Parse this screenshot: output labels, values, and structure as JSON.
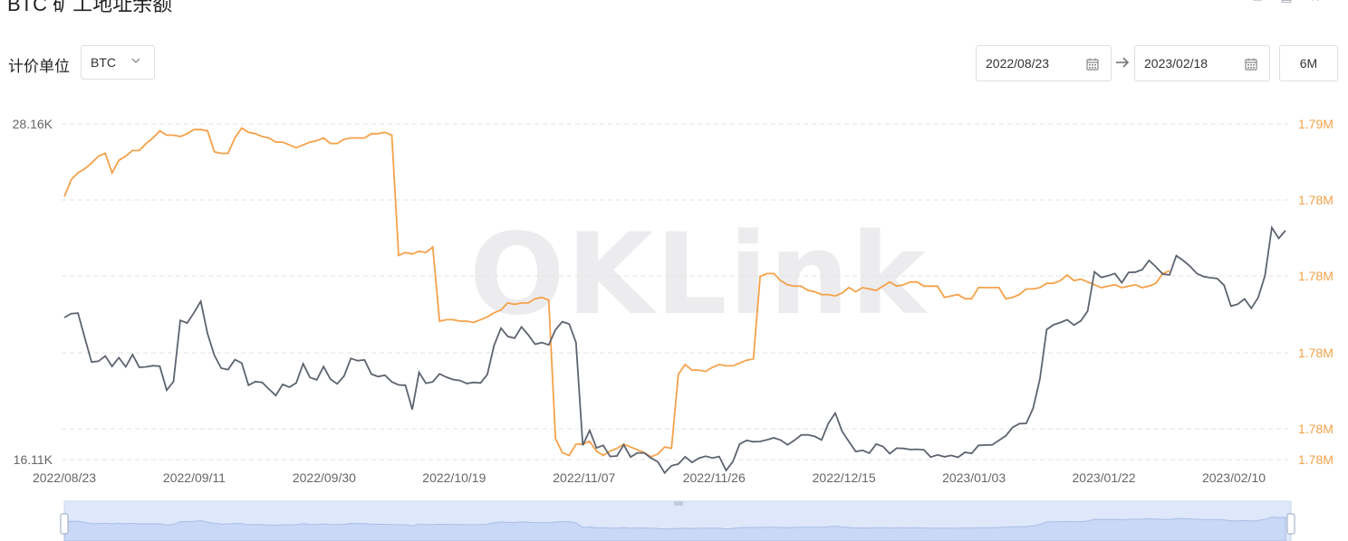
{
  "header": {
    "title": "BTC 矿工地址余额",
    "icons": [
      "download-icon",
      "fullscreen-icon",
      "star-icon"
    ]
  },
  "controls": {
    "unit_label": "计价单位",
    "unit_value": "BTC",
    "start_date": "2022/08/23",
    "end_date": "2023/02/18",
    "period_label": "6M"
  },
  "colors": {
    "price": "#5d6470",
    "balance": "#f5a14a",
    "grid": "#e3e3e3",
    "axis_left": "#666666",
    "navigator": "#dfe8fb"
  },
  "chart_data": {
    "type": "line",
    "title": "",
    "x_tick_labels": [
      "2022/08/23",
      "2022/09/11",
      "2022/09/30",
      "2022/10/19",
      "2022/11/07",
      "2022/11/26",
      "2022/12/15",
      "2023/01/03",
      "2023/01/22",
      "2023/02/10"
    ],
    "x_start": "2022/08/23",
    "x_end": "2023/02/18",
    "y_left": {
      "min": 16110,
      "max": 28160,
      "tick_labels": [
        "28.16K",
        "16.11K"
      ]
    },
    "y_right": {
      "min": 1.78,
      "max": 1.79,
      "tick_labels": [
        "1.79M",
        "1.78M",
        "1.78M",
        "1.78M",
        "1.78M",
        "1.78M"
      ]
    },
    "grid": true,
    "series": [
      {
        "axis": "left",
        "values": [
          21210,
          21350,
          21370,
          20480,
          19610,
          19640,
          19830,
          19460,
          19770,
          19440,
          19880,
          19420,
          19440,
          19480,
          19460,
          18600,
          18910,
          21110,
          21010,
          21380,
          21790,
          20630,
          19850,
          19390,
          19340,
          19700,
          19580,
          18780,
          18910,
          18880,
          18640,
          18410,
          18810,
          18710,
          18860,
          19550,
          19060,
          18970,
          19450,
          19000,
          18830,
          19110,
          19740,
          19660,
          19690,
          19180,
          19090,
          19140,
          18900,
          18790,
          18780,
          17910,
          19240,
          18850,
          18900,
          19190,
          19070,
          18980,
          18950,
          18840,
          18880,
          18860,
          19160,
          20210,
          20830,
          20530,
          20470,
          20870,
          20590,
          20250,
          20310,
          20230,
          20770,
          21060,
          20980,
          20320,
          16620,
          17160,
          16530,
          16620,
          16220,
          16240,
          16640,
          16200,
          16350,
          16350,
          16170,
          16030,
          15630,
          15890,
          15950,
          16210,
          16010,
          16160,
          16230,
          16170,
          16220,
          15720,
          16040,
          16670,
          16800,
          16750,
          16760,
          16820,
          16890,
          16810,
          16640,
          16800,
          16990,
          17000,
          16940,
          16810,
          17410,
          17780,
          17130,
          16760,
          16400,
          16440,
          16340,
          16670,
          16580,
          16320,
          16520,
          16510,
          16470,
          16480,
          16460,
          16200,
          16280,
          16210,
          16260,
          16190,
          16370,
          16330,
          16620,
          16630,
          16640,
          16800,
          16960,
          17270,
          17400,
          17410,
          17950,
          19000,
          20780,
          20950,
          21030,
          21130,
          20940,
          21090,
          21440,
          22850,
          22650,
          22710,
          22790,
          22460,
          22830,
          22840,
          22930,
          23260,
          23030,
          22770,
          22740,
          23430,
          23260,
          23050,
          22790,
          22680,
          22640,
          22610,
          22370,
          21620,
          21690,
          21880,
          21540,
          21930,
          22720,
          24440,
          24050,
          24330
        ]
      },
      {
        "axis": "right",
        "values": [
          1.78658,
          1.7867,
          1.78675,
          1.78678,
          1.78682,
          1.78687,
          1.78689,
          1.78675,
          1.78684,
          1.78687,
          1.78691,
          1.78691,
          1.78696,
          1.787,
          1.78705,
          1.78702,
          1.78702,
          1.78701,
          1.78703,
          1.78706,
          1.78706,
          1.78705,
          1.7869,
          1.78689,
          1.78689,
          1.787,
          1.78707,
          1.78704,
          1.78703,
          1.78701,
          1.787,
          1.78697,
          1.78697,
          1.78695,
          1.78693,
          1.78695,
          1.78697,
          1.78698,
          1.787,
          1.78696,
          1.78696,
          1.78699,
          1.787,
          1.787,
          1.787,
          1.78703,
          1.78703,
          1.78704,
          1.78702,
          1.78616,
          1.78618,
          1.78617,
          1.78619,
          1.78618,
          1.78622,
          1.78569,
          1.7857,
          1.7857,
          1.78569,
          1.78569,
          1.78568,
          1.7857,
          1.78572,
          1.78575,
          1.78577,
          1.78582,
          1.78581,
          1.78582,
          1.78582,
          1.78585,
          1.78586,
          1.78584,
          1.78485,
          1.78475,
          1.78473,
          1.78481,
          1.78481,
          1.78483,
          1.78476,
          1.78473,
          1.78476,
          1.78478,
          1.78481,
          1.78479,
          1.78477,
          1.78475,
          1.78472,
          1.78474,
          1.78479,
          1.78478,
          1.78531,
          1.78538,
          1.78534,
          1.78534,
          1.78533,
          1.78536,
          1.78538,
          1.78537,
          1.78537,
          1.78539,
          1.78541,
          1.78542,
          1.78601,
          1.78603,
          1.78603,
          1.78598,
          1.78595,
          1.78594,
          1.78594,
          1.78591,
          1.7859,
          1.78588,
          1.78588,
          1.78587,
          1.78589,
          1.78593,
          1.7859,
          1.78593,
          1.78592,
          1.78591,
          1.78594,
          1.78597,
          1.78594,
          1.78595,
          1.78597,
          1.78597,
          1.78594,
          1.78594,
          1.78594,
          1.78586,
          1.78587,
          1.78588,
          1.78585,
          1.78585,
          1.78593,
          1.78593,
          1.78593,
          1.78593,
          1.78585,
          1.78586,
          1.78588,
          1.78592,
          1.78592,
          1.78593,
          1.78596,
          1.78596,
          1.78598,
          1.78602,
          1.78598,
          1.78599,
          1.78597,
          1.78595,
          1.78593,
          1.78594,
          1.78595,
          1.78593,
          1.78594,
          1.78595,
          1.78593,
          1.78594,
          1.78596,
          1.78603,
          1.78605
        ]
      }
    ]
  }
}
